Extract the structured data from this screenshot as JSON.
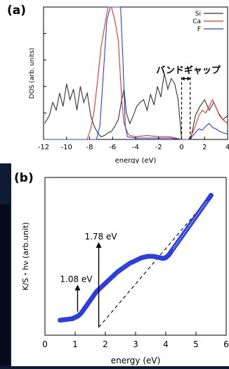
{
  "background_color": "#0f1a33",
  "chart_data": [
    {
      "type": "line",
      "panel_label": "(a)",
      "xlabel": "energy (eV)",
      "ylabel": "DOS (arb. units)",
      "xlim": [
        -12,
        4
      ],
      "ylim": [
        0,
        1
      ],
      "xticks": [
        -12,
        -10,
        -8,
        -6,
        -4,
        -2,
        0,
        2,
        4
      ],
      "tick_labels": [
        "-12",
        "-10",
        "-8",
        "-6",
        "-4",
        "-2",
        "0",
        "2",
        "4"
      ],
      "legend_position": "top-right",
      "annotation": "バンドギャップ",
      "band_gap_edges": [
        0,
        0.75
      ],
      "series": [
        {
          "name": "Si",
          "color": "#333333",
          "x": [
            -11.9,
            -11.5,
            -11.2,
            -10.9,
            -10.6,
            -10.3,
            -10.0,
            -9.7,
            -9.4,
            -9.1,
            -8.8,
            -8.5,
            -8.2,
            -7.9,
            -7.6,
            -7.3,
            -7.0,
            -6.7,
            -6.4,
            -6.1,
            -5.8,
            -5.5,
            -5.2,
            -5.0,
            -4.8,
            -4.5,
            -4.2,
            -3.9,
            -3.6,
            -3.3,
            -3.0,
            -2.7,
            -2.4,
            -2.1,
            -1.8,
            -1.5,
            -1.2,
            -0.9,
            -0.6,
            -0.3,
            0.0,
            0.4,
            0.8,
            1.2,
            1.6,
            2.0,
            2.4,
            2.8,
            3.2,
            3.6,
            4.0
          ],
          "y": [
            0.12,
            0.18,
            0.28,
            0.22,
            0.35,
            0.25,
            0.42,
            0.3,
            0.38,
            0.22,
            0.4,
            0.28,
            0.35,
            0.18,
            0.1,
            0.05,
            0.02,
            0.03,
            0.05,
            0.06,
            0.1,
            0.15,
            0.3,
            0.38,
            0.2,
            0.12,
            0.18,
            0.25,
            0.28,
            0.3,
            0.22,
            0.34,
            0.26,
            0.4,
            0.32,
            0.5,
            0.38,
            0.46,
            0.42,
            0.3,
            0.0,
            0.0,
            0.0,
            0.18,
            0.25,
            0.3,
            0.22,
            0.28,
            0.2,
            0.15,
            0.18
          ]
        },
        {
          "name": "Ca",
          "color": "#e8312e",
          "x": [
            -12,
            -8.2,
            -7.9,
            -7.6,
            -7.3,
            -7.0,
            -6.7,
            -6.4,
            -6.1,
            -5.8,
            -5.5,
            -5.2,
            -5.0,
            -4.7,
            -4.5,
            -4.0,
            -3.0,
            -2.0,
            -1.0,
            0.0,
            0.6,
            0.9,
            1.2,
            1.5,
            1.8,
            2.1,
            2.4,
            2.7,
            3.0,
            3.3,
            3.6,
            4.0
          ],
          "y": [
            0.0,
            0.0,
            0.08,
            0.22,
            0.45,
            0.7,
            0.85,
            1.0,
            1.0,
            0.9,
            0.75,
            0.3,
            0.12,
            0.05,
            0.03,
            0.02,
            0.03,
            0.02,
            0.02,
            0.0,
            0.0,
            0.04,
            0.1,
            0.18,
            0.22,
            0.2,
            0.25,
            0.3,
            0.24,
            0.18,
            0.15,
            0.12
          ]
        },
        {
          "name": "F",
          "color": "#2b3fe0",
          "x": [
            -12,
            -7.4,
            -7.1,
            -6.8,
            -6.5,
            -6.2,
            -5.9,
            -5.6,
            -5.3,
            -5.1,
            -4.9,
            -4.7,
            -4.0,
            -3.0,
            -2.0,
            -1.0,
            0.0,
            0.6,
            0.9,
            1.2,
            1.5,
            1.8,
            2.1,
            2.4,
            2.7,
            3.0,
            3.3,
            3.6,
            4.0
          ],
          "y": [
            0.0,
            0.0,
            0.1,
            0.5,
            0.9,
            1.0,
            1.0,
            1.0,
            1.0,
            0.6,
            0.1,
            0.02,
            0.01,
            0.01,
            0.01,
            0.01,
            0.0,
            0.0,
            0.02,
            0.05,
            0.08,
            0.07,
            0.1,
            0.12,
            0.09,
            0.08,
            0.06,
            0.05,
            0.04
          ]
        }
      ]
    },
    {
      "type": "scatter",
      "panel_label": "(b)",
      "xlabel": "energy (eV)",
      "ylabel": "K/S・hν (arb.unit)",
      "xlim": [
        0,
        6
      ],
      "ylim": [
        0,
        1
      ],
      "xticks": [
        0,
        1,
        2,
        3,
        4,
        5,
        6
      ],
      "tick_labels": [
        "0",
        "1",
        "2",
        "3",
        "4",
        "5",
        "6"
      ],
      "marker_color": "#2b3fe0",
      "series": [
        {
          "name": "",
          "x": [
            0.5,
            0.7,
            0.9,
            1.0,
            1.1,
            1.2,
            1.3,
            1.4,
            1.5,
            1.6,
            1.7,
            1.8,
            2.0,
            2.2,
            2.4,
            2.6,
            2.8,
            3.0,
            3.2,
            3.4,
            3.6,
            3.8,
            3.9,
            4.0,
            4.1,
            4.2,
            4.4,
            4.6,
            4.8,
            5.0,
            5.2,
            5.4,
            5.5
          ],
          "y": [
            0.05,
            0.055,
            0.06,
            0.07,
            0.08,
            0.1,
            0.13,
            0.16,
            0.19,
            0.22,
            0.25,
            0.27,
            0.31,
            0.35,
            0.39,
            0.42,
            0.45,
            0.47,
            0.49,
            0.5,
            0.5,
            0.49,
            0.485,
            0.49,
            0.51,
            0.54,
            0.6,
            0.66,
            0.72,
            0.78,
            0.84,
            0.9,
            0.93
          ]
        }
      ],
      "fit_line": {
        "x": [
          1.78,
          5.5
        ],
        "y": [
          0.0,
          0.93
        ]
      },
      "annotations": [
        {
          "text": "1.08 eV",
          "x": 1.08,
          "arrow_y0": 0.11,
          "arrow_y1": 0.3
        },
        {
          "text": "1.78 eV",
          "x": 1.78,
          "arrow_y0": 0.0,
          "arrow_y1": 0.6
        }
      ]
    }
  ]
}
